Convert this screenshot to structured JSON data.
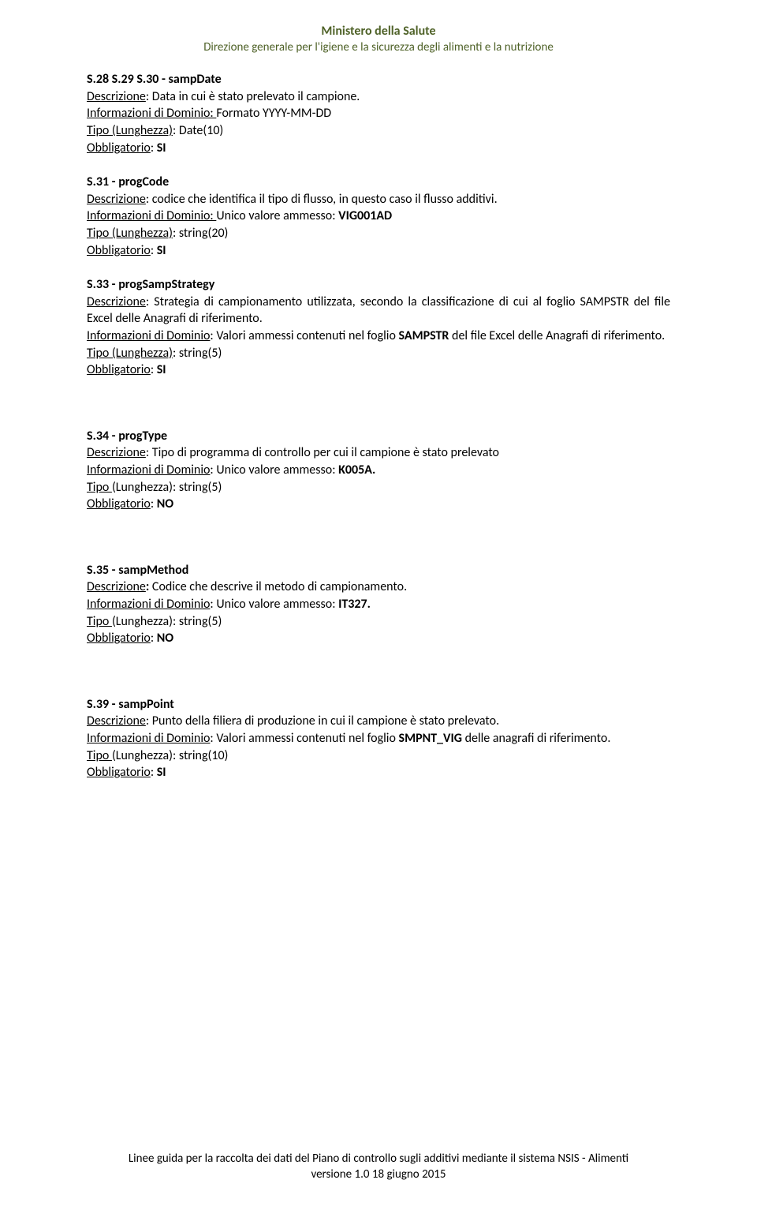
{
  "header": {
    "title": "Ministero della Salute",
    "subtitle": "Direzione generale per l'igiene e la sicurezza degli alimenti e la nutrizione"
  },
  "sections": {
    "s28": {
      "title": "S.28 S.29 S.30 - sampDate",
      "desc_label": "Descrizione",
      "desc": ": Data in cui è stato prelevato il campione.",
      "info_label": "Informazioni di Dominio: ",
      "info": "Formato YYYY-MM-DD",
      "tipo_label": "Tipo (Lunghezza)",
      "tipo": ": Date(10)",
      "obbl_label": "Obbligatorio",
      "obbl_colon": ": ",
      "obbl_val": "SI"
    },
    "s31": {
      "title": "S.31 - progCode",
      "desc_label": "Descrizione",
      "desc": ": codice che identifica il tipo di flusso, in questo caso il flusso additivi.",
      "info_label": "Informazioni di Dominio: ",
      "info_pre": "Unico valore ammesso: ",
      "info_val": "VIG001AD",
      "tipo_label": "Tipo (Lunghezza)",
      "tipo": ": string(20)",
      "obbl_label": "Obbligatorio",
      "obbl_colon": ": ",
      "obbl_val": "SI"
    },
    "s33": {
      "title": "S.33 - progSampStrategy",
      "desc_label": "Descrizione",
      "desc": ": Strategia di campionamento utilizzata, secondo la classificazione di cui al foglio SAMPSTR del file Excel delle Anagrafi di riferimento.",
      "info_label": "Informazioni di Dominio",
      "info_pre": ": Valori ammessi contenuti nel foglio ",
      "info_b": "SAMPSTR",
      "info_post": " del file Excel delle Anagrafi di riferimento.",
      "tipo_label": "Tipo (Lunghezza)",
      "tipo": ": string(5)",
      "obbl_label": "Obbligatorio",
      "obbl_colon": ": ",
      "obbl_val": "SI"
    },
    "s34": {
      "title": "S.34 - progType",
      "desc_label": "Descrizione",
      "desc": ": Tipo di programma di controllo per cui il campione è stato prelevato",
      "info_label": "Informazioni di Dominio",
      "info_pre": ": Unico valore ammesso: ",
      "info_b": "K005A.",
      "tipo_label": "Tipo ",
      "tipo_after": "(Lunghezza): string(5)",
      "obbl_label": "Obbligatorio",
      "obbl_colon": ": ",
      "obbl_val": "NO"
    },
    "s35": {
      "title": "S.35 - sampMethod",
      "desc_label": "Descrizione",
      "desc_b": ":",
      "desc_post": " Codice che descrive il metodo di campionamento.",
      "info_label": "Informazioni di Dominio",
      "info_pre": ": Unico valore ammesso: ",
      "info_b": "IT327.",
      "tipo_label": "Tipo ",
      "tipo_after": "(Lunghezza): string(5)",
      "obbl_label": "Obbligatorio",
      "obbl_colon": ": ",
      "obbl_val": "NO"
    },
    "s39": {
      "title": "S.39 - sampPoint",
      "desc_label": "Descrizione",
      "desc": ": Punto della filiera di produzione in cui il campione è stato prelevato.",
      "info_label": "Informazioni di Dominio",
      "info_pre": ": Valori ammessi contenuti nel foglio ",
      "info_b": "SMPNT_VIG",
      "info_post": " delle anagrafi di riferimento.",
      "tipo_label": "Tipo ",
      "tipo_after": "(Lunghezza): string(10)",
      "obbl_label": "Obbligatorio",
      "obbl_colon": ": ",
      "obbl_val": "SI"
    }
  },
  "footer": {
    "line1": "Linee guida per la raccolta dei dati del Piano di controllo sugli additivi mediante il sistema NSIS - Alimenti",
    "line2": "versione 1.0   18 giugno 2015"
  }
}
